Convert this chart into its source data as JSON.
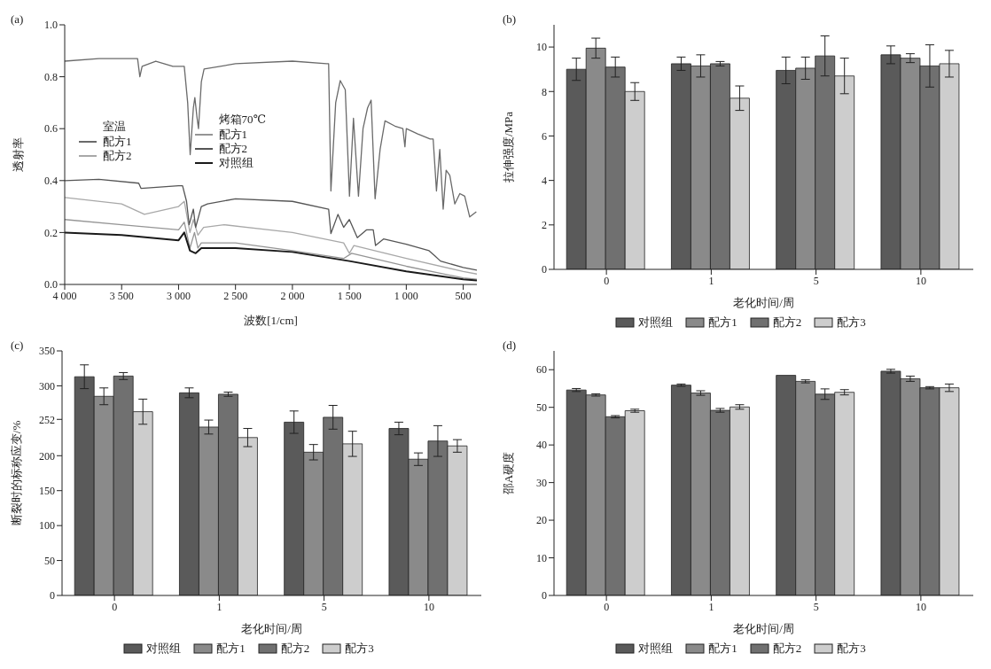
{
  "chart_data": [
    {
      "type": "line",
      "title": "(a)",
      "xlabel": "波数[1/cm]",
      "ylabel": "透射率",
      "annotations": [
        "室温",
        "烤箱70℃"
      ],
      "legend": "left",
      "xlim": [
        4000,
        380
      ],
      "xticks": [
        {
          "value": 4000,
          "label": "4 000"
        },
        {
          "value": 3500,
          "label": "3 500"
        },
        {
          "value": 3000,
          "label": "3 000"
        },
        {
          "value": 2500,
          "label": "2 500"
        },
        {
          "value": 2000,
          "label": "2 000"
        },
        {
          "value": 1500,
          "label": "1 500"
        },
        {
          "value": 1000,
          "label": "1 000"
        },
        500
      ],
      "ylim": [
        0,
        1
      ],
      "yticks": [
        {
          "value": 0,
          "label": "0.0"
        },
        {
          "value": 0.2,
          "label": "0.2"
        },
        {
          "value": 0.4,
          "label": "0.4"
        },
        {
          "value": 0.6,
          "label": "0.6"
        },
        {
          "value": 0.8,
          "label": "0.8"
        },
        {
          "value": 1,
          "label": "1.0"
        }
      ],
      "series": [
        {
          "name": "配方1",
          "color": "#6a6a6a",
          "x": [
            4000,
            3700,
            3360,
            3340,
            3320,
            3200,
            3050,
            3000,
            2950,
            2920,
            2898,
            2870,
            2857,
            2840,
            2825,
            2800,
            2776,
            2500,
            2000,
            1700,
            1682,
            1662,
            1620,
            1580,
            1536,
            1499,
            1464,
            1420,
            1380,
            1340,
            1309,
            1274,
            1230,
            1187,
            1100,
            1030,
            1012,
            1000,
            900,
            790,
            764,
            735,
            706,
            676,
            650,
            618,
            574,
            530,
            487,
            443,
            385
          ],
          "values": [
            0.86,
            0.87,
            0.87,
            0.8,
            0.84,
            0.86,
            0.84,
            0.84,
            0.84,
            0.7,
            0.5,
            0.68,
            0.72,
            0.65,
            0.6,
            0.78,
            0.83,
            0.85,
            0.86,
            0.85,
            0.85,
            0.36,
            0.7,
            0.785,
            0.75,
            0.34,
            0.64,
            0.34,
            0.6,
            0.68,
            0.71,
            0.33,
            0.52,
            0.63,
            0.61,
            0.6,
            0.53,
            0.6,
            0.58,
            0.56,
            0.56,
            0.36,
            0.52,
            0.29,
            0.44,
            0.42,
            0.31,
            0.35,
            0.34,
            0.26,
            0.28
          ]
        },
        {
          "name": "配方2",
          "color": "#a8a8a8",
          "x": [
            4000,
            3500,
            3300,
            3000,
            2950,
            2900,
            2870,
            2830,
            2780,
            2600,
            2000,
            1550,
            1500,
            1460,
            1000,
            500,
            380
          ],
          "values": [
            0.335,
            0.31,
            0.27,
            0.3,
            0.32,
            0.2,
            0.25,
            0.19,
            0.22,
            0.23,
            0.2,
            0.16,
            0.12,
            0.15,
            0.1,
            0.05,
            0.04
          ]
        },
        {
          "name": "配方1",
          "color": "#959595",
          "x": [
            4000,
            3500,
            3000,
            2950,
            2900,
            2860,
            2830,
            2800,
            2500,
            2000,
            1550,
            1480,
            1000,
            500,
            380
          ],
          "values": [
            0.25,
            0.23,
            0.21,
            0.24,
            0.14,
            0.2,
            0.14,
            0.16,
            0.16,
            0.13,
            0.1,
            0.12,
            0.07,
            0.025,
            0.02
          ]
        },
        {
          "name": "配方2",
          "color": "#555555",
          "x": [
            4000,
            3700,
            3350,
            3330,
            3000,
            2965,
            2930,
            2907,
            2870,
            2850,
            2800,
            2746,
            2500,
            2000,
            1682,
            1662,
            1600,
            1550,
            1500,
            1430,
            1350,
            1290,
            1270,
            1200,
            1000,
            800,
            749,
            700,
            500,
            380
          ],
          "values": [
            0.4,
            0.405,
            0.39,
            0.37,
            0.38,
            0.38,
            0.32,
            0.23,
            0.29,
            0.22,
            0.3,
            0.31,
            0.33,
            0.32,
            0.29,
            0.196,
            0.27,
            0.22,
            0.25,
            0.18,
            0.21,
            0.21,
            0.15,
            0.175,
            0.155,
            0.13,
            0.11,
            0.09,
            0.065,
            0.055
          ]
        },
        {
          "name": "对照组",
          "color": "#1a1a1a",
          "x": [
            4000,
            3500,
            3000,
            2950,
            2900,
            2850,
            2800,
            2500,
            2000,
            1500,
            1000,
            500,
            380
          ],
          "values": [
            0.2,
            0.19,
            0.17,
            0.2,
            0.13,
            0.12,
            0.14,
            0.14,
            0.125,
            0.09,
            0.05,
            0.02,
            0.015
          ]
        }
      ]
    },
    {
      "type": "bar",
      "title": "(b)",
      "xlabel": "老化时间/周",
      "ylabel": "拉伸强度/MPa",
      "legend": "bottom",
      "categories": [
        "0",
        "1",
        "5",
        "10"
      ],
      "ylim": [
        0,
        11
      ],
      "yticks": [
        0,
        2,
        4,
        6,
        8,
        10
      ],
      "series": [
        {
          "name": "对照组",
          "color": "#5a5a5a",
          "values": [
            9.0,
            9.25,
            8.95,
            9.65
          ],
          "errors": [
            0.5,
            0.3,
            0.6,
            0.4
          ]
        },
        {
          "name": "配方1",
          "color": "#8a8a8a",
          "values": [
            9.95,
            9.15,
            9.05,
            9.5
          ],
          "errors": [
            0.45,
            0.5,
            0.5,
            0.2
          ]
        },
        {
          "name": "配方2",
          "color": "#707070",
          "values": [
            9.1,
            9.25,
            9.6,
            9.15
          ],
          "errors": [
            0.45,
            0.1,
            0.9,
            0.95
          ]
        },
        {
          "name": "配方3",
          "color": "#cdcdcd",
          "values": [
            8.0,
            7.7,
            8.7,
            9.25
          ],
          "errors": [
            0.4,
            0.55,
            0.8,
            0.6
          ]
        }
      ]
    },
    {
      "type": "bar",
      "title": "(c)",
      "xlabel": "老化时间/周",
      "ylabel": "断裂时的标称应变/%",
      "legend": "bottom",
      "categories": [
        "0",
        "1",
        "5",
        "10"
      ],
      "ylim": [
        0,
        350
      ],
      "yticks": [
        0,
        50,
        100,
        150,
        200,
        252,
        300,
        350
      ],
      "series": [
        {
          "name": "对照组",
          "color": "#5a5a5a",
          "values": [
            313,
            290,
            248,
            239
          ],
          "errors": [
            17,
            7,
            16,
            9
          ]
        },
        {
          "name": "配方1",
          "color": "#8a8a8a",
          "values": [
            285,
            241,
            205,
            195
          ],
          "errors": [
            12,
            10,
            11,
            9
          ]
        },
        {
          "name": "配方2",
          "color": "#707070",
          "values": [
            314,
            288,
            255,
            221
          ],
          "errors": [
            5,
            3,
            17,
            22
          ]
        },
        {
          "name": "配方3",
          "color": "#cdcdcd",
          "values": [
            263,
            226,
            217,
            214
          ],
          "errors": [
            18,
            13,
            18,
            9
          ]
        }
      ]
    },
    {
      "type": "bar",
      "title": "(d)",
      "xlabel": "老化时间/周",
      "ylabel": "邵A硬度",
      "legend": "bottom",
      "categories": [
        "0",
        "1",
        "5",
        "10"
      ],
      "ylim": [
        0,
        65
      ],
      "yticks": [
        0,
        10,
        20,
        30,
        40,
        50,
        60
      ],
      "series": [
        {
          "name": "对照组",
          "color": "#5a5a5a",
          "values": [
            54.6,
            55.9,
            58.5,
            59.6
          ],
          "errors": [
            0.4,
            0.3,
            null,
            0.5
          ]
        },
        {
          "name": "配方1",
          "color": "#8a8a8a",
          "values": [
            53.3,
            53.8,
            56.9,
            57.6
          ],
          "errors": [
            0.3,
            0.6,
            0.4,
            0.7
          ]
        },
        {
          "name": "配方2",
          "color": "#707070",
          "values": [
            47.5,
            49.2,
            53.5,
            55.2
          ],
          "errors": [
            0.3,
            0.5,
            1.4,
            0.3
          ]
        },
        {
          "name": "配方3",
          "color": "#cdcdcd",
          "values": [
            49.1,
            50.1,
            54.0,
            55.2
          ],
          "errors": [
            0.4,
            0.6,
            0.7,
            1.0
          ]
        }
      ]
    }
  ]
}
